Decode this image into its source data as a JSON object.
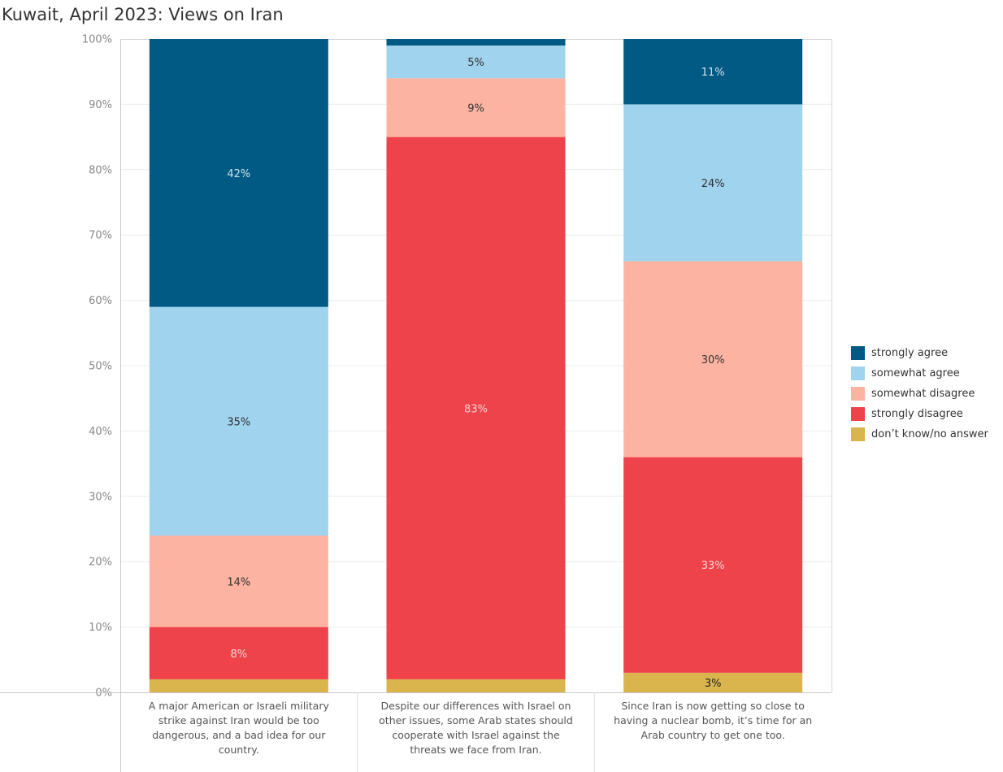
{
  "chart_data": {
    "type": "bar",
    "stacked": true,
    "title": "Kuwait, April 2023: Views on Iran",
    "ylim": [
      0,
      100
    ],
    "yticks": [
      "0%",
      "10%",
      "20%",
      "30%",
      "40%",
      "50%",
      "60%",
      "70%",
      "80%",
      "90%",
      "100%"
    ],
    "grid": true,
    "legend_position": "right",
    "categories": [
      "A major American or Israeli military strike against Iran would be too dangerous, and a bad idea for our country.",
      "Despite our differences with Israel on other issues, some Arab states should cooperate with Israel against the threats we face from Iran.",
      "Since Iran is now getting so close to having a nuclear bomb, it’s time for an Arab country to get one too."
    ],
    "category_lines": [
      [
        "A major American or Israeli military",
        "strike against Iran would be too",
        "dangerous, and a bad idea for our",
        "country."
      ],
      [
        "Despite our differences with Israel on",
        "other issues, some Arab states should",
        "cooperate with Israel against the",
        "threats we face from Iran."
      ],
      [
        "Since Iran is now getting so close to",
        "having a nuclear bomb, it’s time for an",
        "Arab country to get one too."
      ]
    ],
    "series": [
      {
        "name": "don’t know/no answer",
        "color": "#DAB44C",
        "values": [
          2,
          2,
          3
        ],
        "labels": [
          "",
          "",
          "3%"
        ],
        "label_color": "#222222"
      },
      {
        "name": "strongly disagree",
        "color": "#EF434B",
        "values": [
          8,
          83,
          33
        ],
        "labels": [
          "8%",
          "83%",
          "33%"
        ],
        "label_color": "#f6d3d3"
      },
      {
        "name": "somewhat disagree",
        "color": "#FDB3A1",
        "values": [
          14,
          9,
          30
        ],
        "labels": [
          "14%",
          "9%",
          "30%"
        ],
        "label_color": "#333333"
      },
      {
        "name": "somewhat agree",
        "color": "#9FD3EE",
        "values": [
          35,
          5,
          24
        ],
        "labels": [
          "35%",
          "5%",
          "24%"
        ],
        "label_color": "#333333"
      },
      {
        "name": "strongly agree",
        "color": "#005A84",
        "values": [
          42,
          1,
          11
        ],
        "labels": [
          "42%",
          "",
          "11%"
        ],
        "label_color": "#cfe0ea"
      }
    ],
    "legend_order": [
      "strongly agree",
      "somewhat agree",
      "somewhat disagree",
      "strongly disagree",
      "don’t know/no answer"
    ]
  }
}
